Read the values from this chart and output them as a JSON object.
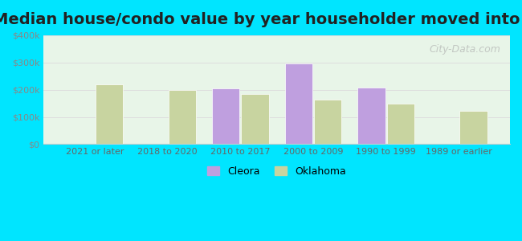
{
  "title": "Median house/condo value by year householder moved into unit",
  "categories": [
    "2021 or later",
    "2018 to 2020",
    "2010 to 2017",
    "2000 to 2009",
    "1990 to 1999",
    "1989 or earlier"
  ],
  "cleora_values": [
    null,
    null,
    205000,
    295000,
    207000,
    null
  ],
  "oklahoma_values": [
    220000,
    200000,
    183000,
    163000,
    150000,
    123000
  ],
  "cleora_color": "#bf9fdf",
  "oklahoma_color": "#c8d4a0",
  "background_top": "#e8f5e8",
  "background_bottom": "#f0faf0",
  "outer_bg": "#00e5ff",
  "ylim": [
    0,
    400000
  ],
  "yticks": [
    0,
    100000,
    200000,
    300000,
    400000
  ],
  "ytick_labels": [
    "$0",
    "$100k",
    "$200k",
    "$300k",
    "$400k"
  ],
  "bar_width": 0.38,
  "title_fontsize": 14,
  "watermark": "City-Data.com"
}
